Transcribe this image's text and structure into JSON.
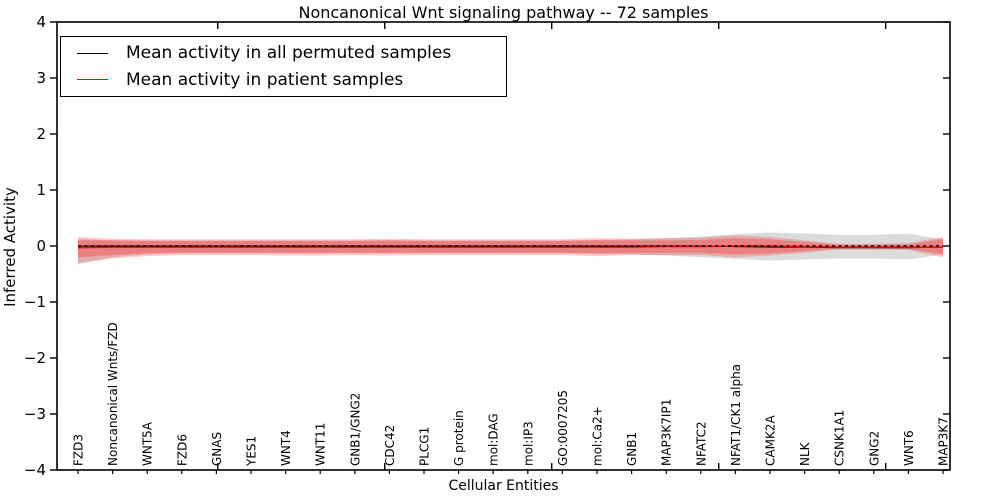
{
  "figure": {
    "background": "#ffffff",
    "frame_color": "#000000"
  },
  "chart_data": {
    "type": "line",
    "title": "Noncanonical Wnt signaling pathway -- 72 samples",
    "xlabel": "Cellular Entities",
    "ylabel": "Inferred Activity",
    "ylim": [
      -4,
      4
    ],
    "yticks": [
      4,
      3,
      2,
      1,
      0,
      -1,
      -2,
      -3,
      -4
    ],
    "grid": false,
    "legend_position": "upper left",
    "categories": [
      "FZD3",
      "Noncanonical Wnts/FZD",
      "WNT5A",
      "FZD6",
      "GNAS",
      "YES1",
      "WNT4",
      "WNT11",
      "GNB1/GNG2",
      "CDC42",
      "PLCG1",
      "G protein",
      "mol:DAG",
      "mol:IP3",
      "GO:0007205",
      "mol:Ca2+",
      "GNB1",
      "MAP3K7IP1",
      "NFATC2",
      "NFAT1/CK1 alpha",
      "CAMK2A",
      "NLK",
      "CSNK1A1",
      "GNG2",
      "WNT6",
      "MAP3K7"
    ],
    "series": [
      {
        "name": "Mean activity in all permuted samples",
        "color": "#000000",
        "style": "solid",
        "values": [
          0,
          0,
          0,
          0,
          0,
          0,
          0,
          0,
          0,
          0,
          0,
          0,
          0,
          0,
          0,
          0,
          0,
          0,
          0,
          -0.01,
          -0.02,
          -0.02,
          -0.03,
          -0.03,
          -0.03,
          -0.02
        ]
      },
      {
        "name": "Mean activity in patient samples",
        "color": "#ff0000",
        "style": "solid",
        "values": [
          -0.03,
          -0.02,
          -0.02,
          -0.02,
          -0.02,
          -0.02,
          -0.02,
          -0.02,
          -0.02,
          -0.02,
          -0.02,
          -0.02,
          -0.02,
          -0.02,
          -0.02,
          -0.02,
          -0.02,
          -0.01,
          -0.01,
          0,
          0,
          -0.01,
          -0.02,
          -0.02,
          -0.02,
          -0.02
        ]
      }
    ],
    "reference_line": {
      "name": "zero-dashed-line",
      "y": 0,
      "color": "#000000",
      "style": "dashed"
    },
    "bands": [
      {
        "name": "permuted-samples-std-band",
        "color": "#000000",
        "opacity": 0.14,
        "upper": [
          0.1,
          0.1,
          0.1,
          0.1,
          0.1,
          0.1,
          0.1,
          0.1,
          0.1,
          0.1,
          0.1,
          0.1,
          0.1,
          0.1,
          0.1,
          0.11,
          0.12,
          0.14,
          0.17,
          0.21,
          0.24,
          0.22,
          0.2,
          0.2,
          0.22,
          0.12
        ],
        "lower": [
          -0.33,
          -0.2,
          -0.15,
          -0.13,
          -0.13,
          -0.13,
          -0.13,
          -0.13,
          -0.13,
          -0.13,
          -0.13,
          -0.13,
          -0.13,
          -0.13,
          -0.13,
          -0.14,
          -0.15,
          -0.17,
          -0.2,
          -0.23,
          -0.26,
          -0.24,
          -0.22,
          -0.22,
          -0.24,
          -0.15
        ]
      },
      {
        "name": "patient-samples-std-band-outer",
        "color": "#ff0000",
        "opacity": 0.22,
        "upper": [
          0.16,
          0.13,
          0.12,
          0.12,
          0.12,
          0.12,
          0.12,
          0.12,
          0.12,
          0.13,
          0.12,
          0.12,
          0.12,
          0.12,
          0.12,
          0.14,
          0.13,
          0.14,
          0.15,
          0.19,
          0.16,
          0.1,
          0.04,
          0.04,
          0.05,
          0.16
        ],
        "lower": [
          -0.3,
          -0.22,
          -0.18,
          -0.16,
          -0.16,
          -0.16,
          -0.17,
          -0.17,
          -0.16,
          -0.17,
          -0.16,
          -0.16,
          -0.16,
          -0.16,
          -0.16,
          -0.18,
          -0.16,
          -0.16,
          -0.16,
          -0.2,
          -0.17,
          -0.12,
          -0.06,
          -0.06,
          -0.07,
          -0.2
        ],
        "legend": false
      },
      {
        "name": "patient-samples-std-band-inner",
        "color": "#ff0000",
        "opacity": 0.25,
        "upper": [
          0.12,
          0.1,
          0.09,
          0.09,
          0.09,
          0.09,
          0.09,
          0.09,
          0.09,
          0.1,
          0.09,
          0.09,
          0.09,
          0.09,
          0.09,
          0.1,
          0.1,
          0.1,
          0.11,
          0.14,
          0.12,
          0.07,
          0.02,
          0.02,
          0.03,
          0.12
        ],
        "lower": [
          -0.2,
          -0.16,
          -0.13,
          -0.12,
          -0.12,
          -0.12,
          -0.12,
          -0.12,
          -0.12,
          -0.12,
          -0.12,
          -0.12,
          -0.12,
          -0.12,
          -0.12,
          -0.13,
          -0.12,
          -0.12,
          -0.12,
          -0.15,
          -0.13,
          -0.09,
          -0.04,
          -0.04,
          -0.05,
          -0.15
        ],
        "legend": false
      }
    ],
    "legend_entries": [
      {
        "label": "Mean activity in all permuted samples",
        "color": "#000000"
      },
      {
        "label": "Mean activity in patient samples",
        "color": "#ff0000"
      }
    ]
  }
}
